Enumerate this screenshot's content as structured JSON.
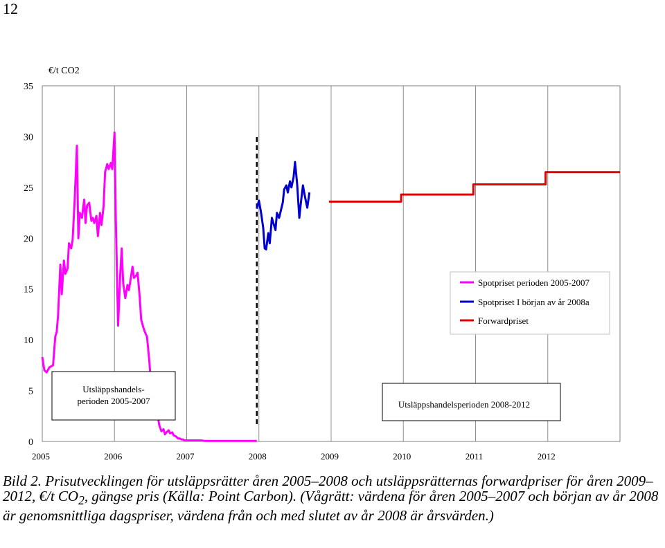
{
  "page_number": "12",
  "caption": {
    "prefix": "Bild 2. Prisutvecklingen för utsläppsrätter åren 2005–2008 och utsläppsrätternas forwardpriser för åren 2009–2012, €/t CO",
    "sub": "2",
    "suffix": ", gängse pris (Källa: Point Carbon). (Vågrätt: värdena för åren 2005–2007 och början av år 2008 är genomsnittliga dagspriser, värdena från och med slutet av år 2008 är årsvärden.)"
  },
  "chart_data": {
    "type": "line",
    "ylabel": "€/t CO2",
    "xlabel": "",
    "ylim": [
      0,
      35
    ],
    "xlim": [
      2005,
      2013
    ],
    "x_ticks": [
      "2005",
      "2006",
      "2007",
      "2008",
      "2009",
      "2010",
      "2011",
      "2012"
    ],
    "y_ticks": [
      "0",
      "5",
      "10",
      "15",
      "20",
      "25",
      "30",
      "35"
    ],
    "grid": "vertical",
    "legend_position": "right",
    "divider_x": 2008,
    "period_labels": [
      {
        "lines": [
          "Utsläppshandels-",
          "perioden 2005-2007"
        ]
      },
      {
        "lines": [
          "Utsläppshandelsperioden 2008-2012"
        ]
      }
    ],
    "series": [
      {
        "name": "Spotpriset perioden 2005-2007",
        "color": "#ff00ff",
        "x": [
          2005.0,
          2005.03,
          2005.06,
          2005.1,
          2005.15,
          2005.18,
          2005.2,
          2005.22,
          2005.25,
          2005.27,
          2005.3,
          2005.32,
          2005.35,
          2005.37,
          2005.4,
          2005.42,
          2005.45,
          2005.48,
          2005.5,
          2005.52,
          2005.55,
          2005.58,
          2005.6,
          2005.62,
          2005.65,
          2005.68,
          2005.7,
          2005.72,
          2005.75,
          2005.77,
          2005.8,
          2005.82,
          2005.85,
          2005.87,
          2005.9,
          2005.92,
          2005.95,
          2005.97,
          2006.0,
          2006.02,
          2006.05,
          2006.08,
          2006.1,
          2006.12,
          2006.15,
          2006.18,
          2006.2,
          2006.22,
          2006.25,
          2006.27,
          2006.3,
          2006.32,
          2006.35,
          2006.37,
          2006.4,
          2006.42,
          2006.45,
          2006.48,
          2006.5,
          2006.52,
          2006.55,
          2006.58,
          2006.6,
          2006.62,
          2006.65,
          2006.68,
          2006.7,
          2006.72,
          2006.75,
          2006.77,
          2006.8,
          2006.82,
          2006.85,
          2006.88,
          2006.9,
          2006.93,
          2006.95,
          2006.97,
          2007.0,
          2007.03,
          2007.06,
          2007.1,
          2007.13,
          2007.16,
          2007.2,
          2007.25,
          2007.3,
          2007.35,
          2007.4,
          2007.5,
          2007.6,
          2007.7,
          2007.8,
          2007.9,
          2007.97
        ],
        "y": [
          8.3,
          7.0,
          6.8,
          7.3,
          7.5,
          10.3,
          10.8,
          12.5,
          17.4,
          14.5,
          17.8,
          16.5,
          17.0,
          19.5,
          19.0,
          19.8,
          23.9,
          29.1,
          20.0,
          22.5,
          22.0,
          23.8,
          21.5,
          23.2,
          23.5,
          21.7,
          22.0,
          21.5,
          22.2,
          20.2,
          22.5,
          21.3,
          23.2,
          26.5,
          27.3,
          26.8,
          27.4,
          26.8,
          30.4,
          21.5,
          11.4,
          16.5,
          19.0,
          15.6,
          14.1,
          15.4,
          14.9,
          15.8,
          17.2,
          16.1,
          16.3,
          16.6,
          14.2,
          12.0,
          11.2,
          10.8,
          10.3,
          8.1,
          6.3,
          5.3,
          4.5,
          3.2,
          2.5,
          1.6,
          1.0,
          1.2,
          0.7,
          0.9,
          1.1,
          0.8,
          0.9,
          0.6,
          0.5,
          0.3,
          0.3,
          0.2,
          0.2,
          0.1,
          0.1,
          0.1,
          0.1,
          0.1,
          0.1,
          0.1,
          0.1,
          0.05,
          0.05,
          0.05,
          0.05,
          0.05,
          0.05,
          0.05,
          0.05,
          0.05,
          0.05
        ]
      },
      {
        "name": "Spotpriset I början av år 2008a",
        "color": "#0000cc",
        "x": [
          2007.97,
          2008.0,
          2008.03,
          2008.06,
          2008.08,
          2008.1,
          2008.13,
          2008.15,
          2008.18,
          2008.2,
          2008.23,
          2008.25,
          2008.28,
          2008.3,
          2008.33,
          2008.35,
          2008.38,
          2008.4,
          2008.43,
          2008.45,
          2008.48,
          2008.5,
          2008.53,
          2008.56,
          2008.58,
          2008.61,
          2008.64,
          2008.67,
          2008.7
        ],
        "y": [
          22.9,
          23.7,
          22.5,
          21.0,
          19.0,
          18.9,
          20.5,
          19.5,
          22.0,
          21.5,
          20.8,
          22.5,
          22.0,
          22.6,
          23.5,
          24.8,
          25.2,
          24.5,
          25.6,
          25.0,
          26.0,
          27.5,
          25.3,
          22.0,
          23.4,
          25.2,
          24.0,
          23.0,
          24.5
        ]
      },
      {
        "name": "Forwardpriset",
        "color": "#dd0000",
        "step": true,
        "x": [
          2008.97,
          2009.97,
          2009.97,
          2010.97,
          2010.97,
          2011.97,
          2011.97,
          2013.0
        ],
        "y": [
          23.6,
          23.6,
          24.3,
          24.3,
          25.3,
          25.3,
          26.5,
          26.5
        ]
      }
    ]
  }
}
